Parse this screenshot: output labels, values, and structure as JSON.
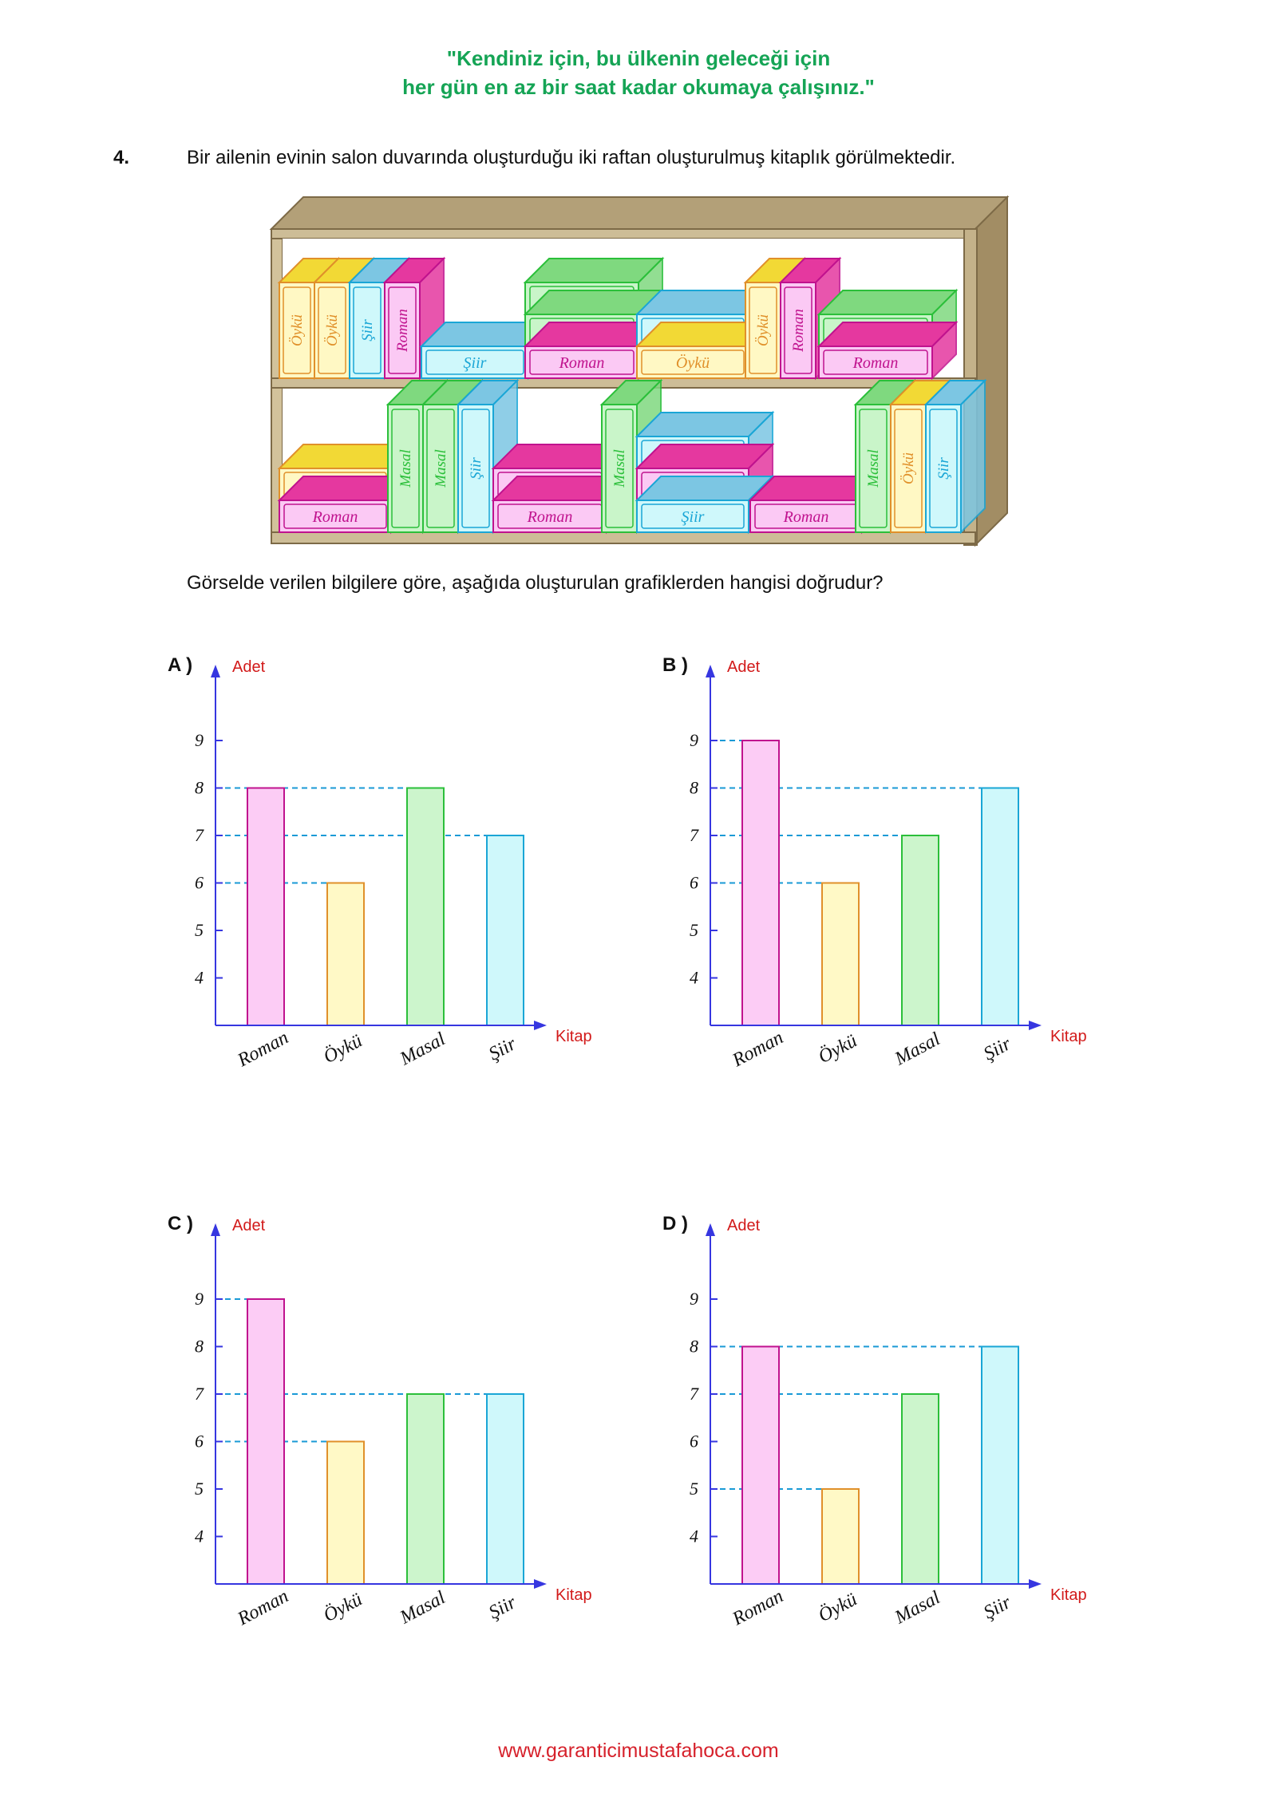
{
  "header": {
    "quote_line1": "\"Kendiniz için, bu ülkenin geleceği için",
    "quote_line2": "her gün en az bir saat kadar okumaya çalışınız.\"",
    "color": "#15a455"
  },
  "question": {
    "number": "4.",
    "text": "Bir ailenin evinin salon duvarında oluşturduğu iki raftan oluşturulmuş kitaplık görülmektedir.",
    "prompt": "Görselde verilen bilgilere göre, aşağıda oluşturulan grafiklerden hangisi doğrudur?"
  },
  "bookshelf": {
    "top_shelf": {
      "standing_left": [
        "Öykü",
        "Öykü",
        "Şiir",
        "Roman"
      ],
      "stack_a": [
        "Şiir"
      ],
      "stack_b": [
        "Masal",
        "Masal",
        "Roman"
      ],
      "stack_c": [
        "Şiir",
        "Öykü"
      ],
      "standing_right": [
        "Öykü",
        "Roman"
      ],
      "stack_d": [
        "Masal",
        "Roman"
      ]
    },
    "bottom_shelf": {
      "stack_a": [
        "Öykü",
        "Roman"
      ],
      "standing_a": [
        "Masal",
        "Masal",
        "Şiir"
      ],
      "stack_b": [
        "Roman",
        "Roman"
      ],
      "standing_b": [
        "Masal"
      ],
      "stack_c": [
        "Şiir",
        "Roman",
        "Şiir"
      ],
      "stack_d": [
        "Roman"
      ],
      "standing_c": [
        "Masal",
        "Öykü",
        "Şiir"
      ]
    }
  },
  "book_colors": {
    "Roman": {
      "fill": "#fbc9f4",
      "stroke": "#c0128e",
      "top": "#e5389f"
    },
    "Öykü": {
      "fill": "#fff8c4",
      "stroke": "#e0902a",
      "top": "#f2d935"
    },
    "Masal": {
      "fill": "#c9f5c9",
      "stroke": "#2bbf3a",
      "top": "#7fd97f"
    },
    "Şiir": {
      "fill": "#cff8fb",
      "stroke": "#1aa6d6",
      "top": "#7cc6e3"
    }
  },
  "chart_data": [
    {
      "type": "bar",
      "option": "A )",
      "xlabel": "Kitap",
      "ylabel": "Adet",
      "categories": [
        "Roman",
        "Öykü",
        "Masal",
        "Şiir"
      ],
      "values": [
        8,
        6,
        8,
        7
      ],
      "yticks": [
        4,
        5,
        6,
        7,
        8,
        9
      ],
      "ylim": [
        3,
        9
      ]
    },
    {
      "type": "bar",
      "option": "B )",
      "xlabel": "Kitap",
      "ylabel": "Adet",
      "categories": [
        "Roman",
        "Öykü",
        "Masal",
        "Şiir"
      ],
      "values": [
        9,
        6,
        7,
        8
      ],
      "yticks": [
        4,
        5,
        6,
        7,
        8,
        9
      ],
      "ylim": [
        3,
        9
      ]
    },
    {
      "type": "bar",
      "option": "C )",
      "xlabel": "Kitap",
      "ylabel": "Adet",
      "categories": [
        "Roman",
        "Öykü",
        "Masal",
        "Şiir"
      ],
      "values": [
        9,
        6,
        7,
        7
      ],
      "yticks": [
        4,
        5,
        6,
        7,
        8,
        9
      ],
      "ylim": [
        3,
        9
      ]
    },
    {
      "type": "bar",
      "option": "D )",
      "xlabel": "Kitap",
      "ylabel": "Adet",
      "categories": [
        "Roman",
        "Öykü",
        "Masal",
        "Şiir"
      ],
      "values": [
        8,
        5,
        7,
        8
      ],
      "yticks": [
        4,
        5,
        6,
        7,
        8,
        9
      ],
      "ylim": [
        3,
        9
      ]
    }
  ],
  "chart_style": {
    "bar_fills": [
      "#fcccf5",
      "#fff9c6",
      "#ccf5cc",
      "#cff8fb"
    ],
    "bar_strokes": [
      "#c0128e",
      "#e0902a",
      "#2bbf3a",
      "#1aa6d6"
    ],
    "axis_color": "#3636e0",
    "dash_color": "#1a9ad6",
    "axis_label_color": "#d21a1a"
  },
  "footer": {
    "url": "www.garanticimustafahoca.com"
  }
}
